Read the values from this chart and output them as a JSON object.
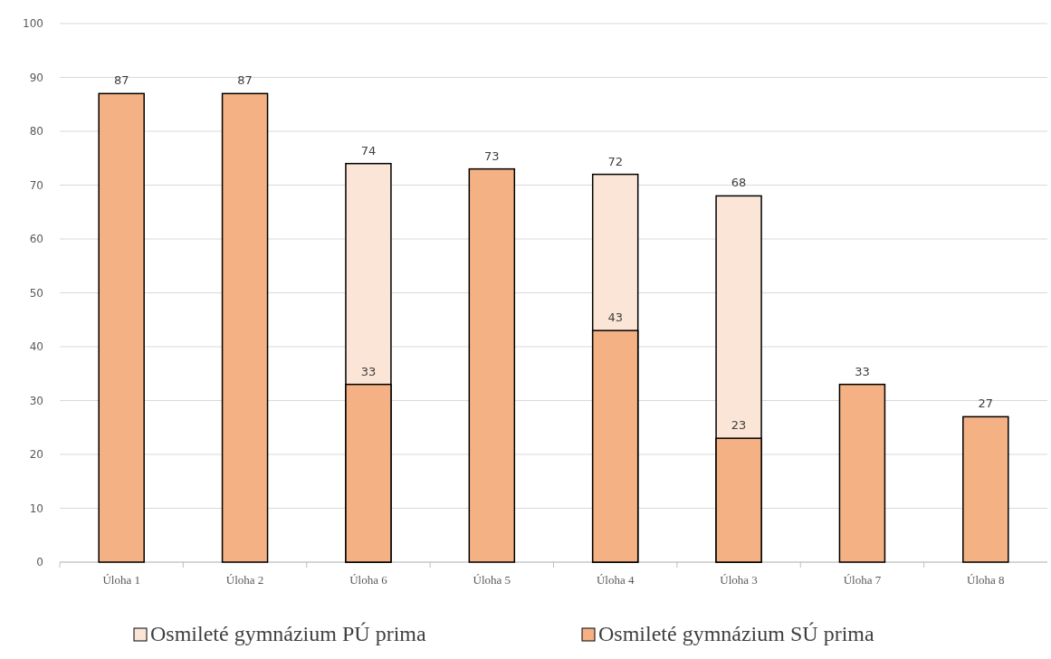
{
  "chart_data": {
    "type": "bar",
    "categories": [
      "Úloha 1",
      "Úloha 2",
      "Úloha 6",
      "Úloha 5",
      "Úloha 4",
      "Úloha 3",
      "Úloha 7",
      "Úloha 8"
    ],
    "series": [
      {
        "name": "Osmileté gymnázium PÚ prima",
        "color": "#fbe5d6",
        "values": [
          null,
          null,
          74,
          null,
          72,
          68,
          null,
          null
        ]
      },
      {
        "name": "Osmileté gymnázium SÚ prima",
        "color": "#f4b183",
        "values": [
          87,
          87,
          33,
          73,
          43,
          23,
          33,
          27
        ]
      }
    ],
    "ylim": [
      0,
      100
    ],
    "yticks": [
      0,
      10,
      20,
      30,
      40,
      50,
      60,
      70,
      80,
      90,
      100
    ],
    "grid": "y",
    "legend": "bottom",
    "data_labels": true
  }
}
